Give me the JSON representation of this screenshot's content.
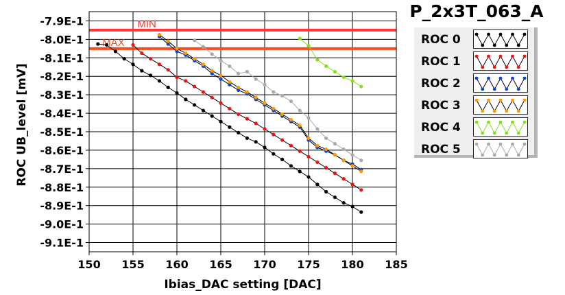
{
  "title": "P_2x3T_063_A",
  "chart_data": {
    "type": "line",
    "xlabel": "Ibias_DAC setting [DAC]",
    "ylabel": "ROC UB_level [mV]",
    "xlim": [
      150,
      185
    ],
    "ylim": [
      -0.915,
      -0.785
    ],
    "x_ticks": [
      150,
      155,
      160,
      165,
      170,
      175,
      180,
      185
    ],
    "x_tick_labels": [
      "150",
      "155",
      "160",
      "165",
      "170",
      "175",
      "180",
      "185"
    ],
    "y_ticks": [
      -0.79,
      -0.8,
      -0.81,
      -0.82,
      -0.83,
      -0.84,
      -0.85,
      -0.86,
      -0.87,
      -0.88,
      -0.89,
      -0.9,
      -0.91
    ],
    "y_tick_labels": [
      "-7.9E-1",
      "-8.0E-1",
      "-8.1E-1",
      "-8.2E-1",
      "-8.3E-1",
      "-8.4E-1",
      "-8.5E-1",
      "-8.6E-1",
      "-8.7E-1",
      "-8.8E-1",
      "-8.9E-1",
      "-9.0E-1",
      "-9.1E-1"
    ],
    "grid": true,
    "legend_position": "right",
    "reference_lines": [
      {
        "label": "MIN",
        "y": -0.795,
        "color": "#ff3333"
      },
      {
        "label": "MAX",
        "y": -0.805,
        "color": "#ff4a1a"
      }
    ],
    "series": [
      {
        "name": "ROC 0",
        "color": "#000000",
        "line_color": "#000000",
        "x": [
          151,
          152,
          153,
          154,
          155,
          156,
          157,
          158,
          159,
          160,
          161,
          162,
          163,
          164,
          165,
          166,
          167,
          168,
          169,
          170,
          171,
          172,
          173,
          174,
          175,
          176,
          177,
          178,
          179,
          180,
          181
        ],
        "y": [
          -0.8025,
          -0.803,
          -0.8065,
          -0.8105,
          -0.8135,
          -0.817,
          -0.8195,
          -0.8225,
          -0.826,
          -0.829,
          -0.8325,
          -0.8355,
          -0.8385,
          -0.8415,
          -0.8445,
          -0.8475,
          -0.8505,
          -0.8535,
          -0.8555,
          -0.8585,
          -0.862,
          -0.865,
          -0.8685,
          -0.8715,
          -0.8745,
          -0.8785,
          -0.8825,
          -0.8855,
          -0.8885,
          -0.8905,
          -0.8935
        ]
      },
      {
        "name": "ROC 1",
        "color": "#ee1111",
        "line_color": "#000000",
        "x": [
          155,
          156,
          157,
          158,
          159,
          160,
          161,
          162,
          163,
          164,
          165,
          166,
          167,
          168,
          169,
          170,
          171,
          172,
          173,
          174,
          175,
          176,
          177,
          178,
          179,
          180,
          181
        ],
        "y": [
          -0.803,
          -0.8075,
          -0.8105,
          -0.8135,
          -0.8165,
          -0.8205,
          -0.8225,
          -0.8255,
          -0.8285,
          -0.8315,
          -0.8345,
          -0.8375,
          -0.8405,
          -0.843,
          -0.8455,
          -0.8485,
          -0.8515,
          -0.8545,
          -0.8575,
          -0.8605,
          -0.8635,
          -0.8665,
          -0.8695,
          -0.8725,
          -0.8755,
          -0.8785,
          -0.8815
        ]
      },
      {
        "name": "ROC 2",
        "color": "#1144cc",
        "line_color": "#000000",
        "x": [
          158,
          159,
          160,
          161,
          162,
          163,
          164,
          165,
          166,
          167,
          168,
          169,
          170,
          171,
          172,
          173,
          174,
          175,
          176,
          177,
          178,
          179,
          180,
          181
        ],
        "y": [
          -0.7985,
          -0.8025,
          -0.8065,
          -0.8085,
          -0.8115,
          -0.8145,
          -0.8185,
          -0.8215,
          -0.8245,
          -0.8275,
          -0.8295,
          -0.8325,
          -0.8355,
          -0.8385,
          -0.8415,
          -0.8445,
          -0.8475,
          -0.8545,
          -0.8585,
          -0.8605,
          -0.8625,
          -0.8655,
          -0.8675,
          -0.8705
        ]
      },
      {
        "name": "ROC 3",
        "color": "#ff9900",
        "line_color": "#000000",
        "x": [
          158,
          159,
          160,
          161,
          162,
          163,
          164,
          165,
          166,
          167,
          168,
          169,
          170,
          171,
          172,
          173,
          174,
          175,
          176,
          177,
          178,
          179,
          180,
          181
        ],
        "y": [
          -0.7975,
          -0.801,
          -0.805,
          -0.8075,
          -0.8105,
          -0.8135,
          -0.817,
          -0.8195,
          -0.823,
          -0.826,
          -0.8285,
          -0.8315,
          -0.8345,
          -0.8375,
          -0.8405,
          -0.8435,
          -0.8465,
          -0.8535,
          -0.8575,
          -0.8595,
          -0.8625,
          -0.8655,
          -0.8685,
          -0.8715
        ]
      },
      {
        "name": "ROC 4",
        "color": "#88dd22",
        "line_color": "#88dd22",
        "x": [
          174,
          175,
          176,
          177,
          178,
          179,
          180,
          181
        ],
        "y": [
          -0.7995,
          -0.8035,
          -0.811,
          -0.8145,
          -0.8175,
          -0.8205,
          -0.8225,
          -0.8255
        ]
      },
      {
        "name": "ROC 5",
        "color": "#aaaaaa",
        "line_color": "#aaaaaa",
        "x": [
          162,
          163,
          164,
          165,
          166,
          167,
          168,
          169,
          170,
          171,
          172,
          173,
          174,
          175,
          176,
          177,
          178,
          179,
          180,
          181
        ],
        "y": [
          -0.8005,
          -0.804,
          -0.808,
          -0.8115,
          -0.8145,
          -0.8185,
          -0.8175,
          -0.8215,
          -0.8245,
          -0.8285,
          -0.8305,
          -0.8335,
          -0.8385,
          -0.8425,
          -0.8485,
          -0.8535,
          -0.8565,
          -0.8595,
          -0.8625,
          -0.8655
        ]
      }
    ]
  }
}
